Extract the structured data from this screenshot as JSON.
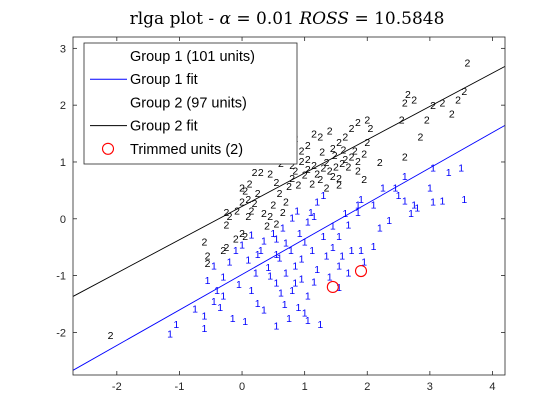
{
  "chart_data": {
    "type": "scatter",
    "title": "rlga plot - α = 0.01 ROSS = 10.5848",
    "title_parts": {
      "prefix": "rlga plot - ",
      "alpha_symbol": "α",
      "alpha_value": " = 0.01 ",
      "ross_symbol": "ROSS",
      "ross_value": " = 10.5848"
    },
    "xlabel": "",
    "ylabel": "",
    "xlim": [
      -2.7,
      4.2
    ],
    "ylim": [
      -2.75,
      3.2
    ],
    "xticks": [
      -2,
      -1,
      0,
      1,
      2,
      3,
      4
    ],
    "yticks": [
      -2,
      -1,
      0,
      1,
      2,
      3
    ],
    "grid": false,
    "legend_placement": "top-left",
    "legend": [
      {
        "label": "Group 1 (101 units)",
        "kind": "marker",
        "marker": "1"
      },
      {
        "label": "Group 1 fit",
        "kind": "line",
        "color": "#0000ff"
      },
      {
        "label": "Group 2 (97 units)",
        "kind": "marker",
        "marker": "2"
      },
      {
        "label": "Group 2 fit",
        "kind": "line",
        "color": "#000000"
      },
      {
        "label": "Trimmed units (2)",
        "kind": "circle",
        "color": "#ff0000"
      }
    ],
    "series": [
      {
        "name": "Group 1 (101 units)",
        "marker": "1",
        "color": "#0000ff",
        "points": [
          [
            -1.05,
            -1.85
          ],
          [
            -1.15,
            -2.02
          ],
          [
            -0.6,
            -1.7
          ],
          [
            -0.75,
            -1.58
          ],
          [
            -0.35,
            -1.55
          ],
          [
            -0.45,
            -1.45
          ],
          [
            -0.4,
            -1.25
          ],
          [
            -0.55,
            -1.08
          ],
          [
            -0.3,
            -1.02
          ],
          [
            -0.45,
            -0.82
          ],
          [
            -0.2,
            -0.75
          ],
          [
            0.1,
            -0.72
          ],
          [
            0.22,
            -0.95
          ],
          [
            0.55,
            -0.62
          ],
          [
            0.42,
            -0.85
          ],
          [
            0.6,
            -0.68
          ],
          [
            0.0,
            -0.45
          ],
          [
            -0.1,
            -0.55
          ],
          [
            0.15,
            -0.28
          ],
          [
            0.35,
            -0.38
          ],
          [
            0.5,
            -0.25
          ],
          [
            0.65,
            -0.15
          ],
          [
            0.3,
            -0.55
          ],
          [
            0.45,
            -1.0
          ],
          [
            0.55,
            -1.12
          ],
          [
            0.7,
            -0.95
          ],
          [
            0.62,
            -1.3
          ],
          [
            0.8,
            -1.25
          ],
          [
            0.68,
            -1.5
          ],
          [
            0.9,
            -1.55
          ],
          [
            1.0,
            -1.65
          ],
          [
            1.05,
            -1.35
          ],
          [
            1.15,
            -1.1
          ],
          [
            0.95,
            -1.05
          ],
          [
            0.85,
            -0.82
          ],
          [
            0.78,
            -0.55
          ],
          [
            1.0,
            -0.4
          ],
          [
            0.92,
            -0.25
          ],
          [
            1.05,
            -0.05
          ],
          [
            0.8,
            0.02
          ],
          [
            0.88,
            0.15
          ],
          [
            1.1,
            0.12
          ],
          [
            1.3,
            -0.3
          ],
          [
            1.45,
            -0.5
          ],
          [
            1.35,
            -0.65
          ],
          [
            1.55,
            -0.82
          ],
          [
            1.2,
            -0.88
          ],
          [
            1.4,
            -1.02
          ],
          [
            1.55,
            -1.2
          ],
          [
            1.7,
            -0.95
          ],
          [
            1.6,
            -0.65
          ],
          [
            1.75,
            -0.55
          ],
          [
            1.55,
            -0.3
          ],
          [
            1.7,
            -0.1
          ],
          [
            1.65,
            0.1
          ],
          [
            1.85,
            0.12
          ],
          [
            1.9,
            0.35
          ],
          [
            2.1,
            0.25
          ],
          [
            2.2,
            -0.15
          ],
          [
            2.35,
            -0.02
          ],
          [
            2.1,
            -0.48
          ],
          [
            1.9,
            -0.55
          ],
          [
            1.95,
            -0.75
          ],
          [
            2.7,
            0.1
          ],
          [
            2.8,
            0.2
          ],
          [
            2.6,
            0.32
          ],
          [
            2.5,
            0.42
          ],
          [
            3.05,
            0.3
          ],
          [
            3.2,
            0.32
          ],
          [
            3.0,
            0.55
          ],
          [
            3.3,
            0.82
          ],
          [
            3.5,
            0.9
          ],
          [
            3.55,
            0.35
          ],
          [
            2.75,
            0.25
          ],
          [
            2.45,
            0.55
          ],
          [
            2.6,
            0.75
          ],
          [
            3.05,
            0.9
          ],
          [
            1.85,
            0.25
          ],
          [
            1.2,
            0.3
          ],
          [
            1.3,
            0.42
          ],
          [
            1.15,
            0.05
          ],
          [
            0.55,
            -0.35
          ],
          [
            0.7,
            -0.42
          ],
          [
            0.25,
            -0.62
          ],
          [
            -0.3,
            -1.35
          ],
          [
            -0.15,
            -1.75
          ],
          [
            0.05,
            -1.8
          ],
          [
            0.25,
            -1.48
          ],
          [
            -0.05,
            -1.15
          ],
          [
            0.15,
            -1.25
          ],
          [
            0.35,
            -1.6
          ],
          [
            0.55,
            -1.88
          ],
          [
            0.75,
            -1.75
          ],
          [
            1.05,
            -1.78
          ],
          [
            1.25,
            -1.85
          ],
          [
            -0.6,
            -1.92
          ],
          [
            1.45,
            -0.12
          ],
          [
            2.25,
            0.55
          ],
          [
            0.85,
            -1.12
          ],
          [
            0.95,
            -0.7
          ],
          [
            1.12,
            -0.55
          ]
        ]
      },
      {
        "name": "Group 2 (97 units)",
        "marker": "2",
        "color": "#000000",
        "points": [
          [
            -2.1,
            -2.05
          ],
          [
            -0.55,
            -0.65
          ],
          [
            -0.6,
            -0.4
          ],
          [
            -0.55,
            -0.78
          ],
          [
            -0.3,
            -0.55
          ],
          [
            -0.25,
            -0.5
          ],
          [
            -0.1,
            -0.35
          ],
          [
            0.0,
            -0.25
          ],
          [
            0.05,
            -0.3
          ],
          [
            -0.25,
            -0.1
          ],
          [
            -0.2,
            0.05
          ],
          [
            -0.25,
            0.12
          ],
          [
            -0.08,
            0.15
          ],
          [
            0.1,
            0.05
          ],
          [
            0.15,
            0.15
          ],
          [
            0.0,
            0.3
          ],
          [
            0.1,
            0.35
          ],
          [
            0.05,
            0.5
          ],
          [
            0.12,
            0.62
          ],
          [
            0.25,
            0.45
          ],
          [
            0.2,
            0.28
          ],
          [
            0.5,
            0.25
          ],
          [
            0.45,
            0.05
          ],
          [
            0.55,
            -0.08
          ],
          [
            0.4,
            -0.12
          ],
          [
            0.65,
            0.12
          ],
          [
            0.7,
            0.3
          ],
          [
            0.6,
            0.45
          ],
          [
            0.75,
            0.58
          ],
          [
            0.8,
            0.72
          ],
          [
            0.2,
            0.82
          ],
          [
            0.3,
            0.82
          ],
          [
            0.45,
            0.8
          ],
          [
            0.55,
            0.65
          ],
          [
            0.85,
            0.85
          ],
          [
            0.95,
            1.02
          ],
          [
            1.0,
            0.78
          ],
          [
            1.05,
            0.88
          ],
          [
            1.15,
            0.95
          ],
          [
            1.2,
            0.8
          ],
          [
            1.25,
            0.7
          ],
          [
            1.3,
            0.9
          ],
          [
            1.35,
            1.0
          ],
          [
            1.4,
            0.85
          ],
          [
            1.45,
            0.75
          ],
          [
            1.5,
            0.92
          ],
          [
            1.35,
            0.55
          ],
          [
            1.55,
            0.6
          ],
          [
            1.6,
            0.98
          ],
          [
            1.65,
            1.05
          ],
          [
            1.7,
            0.92
          ],
          [
            1.75,
            1.1
          ],
          [
            1.8,
            1.2
          ],
          [
            1.85,
            1.02
          ],
          [
            1.95,
            1.15
          ],
          [
            1.55,
            1.35
          ],
          [
            1.45,
            1.25
          ],
          [
            1.65,
            1.45
          ],
          [
            1.75,
            1.6
          ],
          [
            1.85,
            1.7
          ],
          [
            2.0,
            1.75
          ],
          [
            2.05,
            1.6
          ],
          [
            1.4,
            1.55
          ],
          [
            1.25,
            1.45
          ],
          [
            1.15,
            1.5
          ],
          [
            1.05,
            1.3
          ],
          [
            0.95,
            1.2
          ],
          [
            0.85,
            1.42
          ],
          [
            2.0,
            1.35
          ],
          [
            2.55,
            1.75
          ],
          [
            2.6,
            2.05
          ],
          [
            2.65,
            2.2
          ],
          [
            2.75,
            2.1
          ],
          [
            2.95,
            1.75
          ],
          [
            3.05,
            2.0
          ],
          [
            3.2,
            2.05
          ],
          [
            3.35,
            1.85
          ],
          [
            3.45,
            2.1
          ],
          [
            3.55,
            2.25
          ],
          [
            3.6,
            2.75
          ],
          [
            2.6,
            1.1
          ],
          [
            2.85,
            1.45
          ],
          [
            2.2,
            1.0
          ],
          [
            1.85,
            0.85
          ],
          [
            1.95,
            0.7
          ],
          [
            1.55,
            0.72
          ],
          [
            1.05,
            1.05
          ],
          [
            0.8,
            0.95
          ],
          [
            0.9,
            0.6
          ],
          [
            0.35,
            0.1
          ],
          [
            0.62,
            0.98
          ],
          [
            0.72,
            1.08
          ],
          [
            1.12,
            0.62
          ],
          [
            1.28,
            1.18
          ],
          [
            1.48,
            1.12
          ],
          [
            1.62,
            1.22
          ],
          [
            0.0,
            0.55
          ]
        ]
      },
      {
        "name": "Trimmed units (2)",
        "marker": "circle",
        "color": "#ff0000",
        "points": [
          [
            1.45,
            -1.2
          ],
          [
            1.9,
            -0.92
          ]
        ]
      }
    ],
    "fits": [
      {
        "name": "Group 1 fit",
        "color": "#0000ff",
        "intercept": -0.98,
        "slope": 0.625
      },
      {
        "name": "Group 2 fit",
        "color": "#000000",
        "intercept": 0.218,
        "slope": 0.587
      }
    ]
  }
}
